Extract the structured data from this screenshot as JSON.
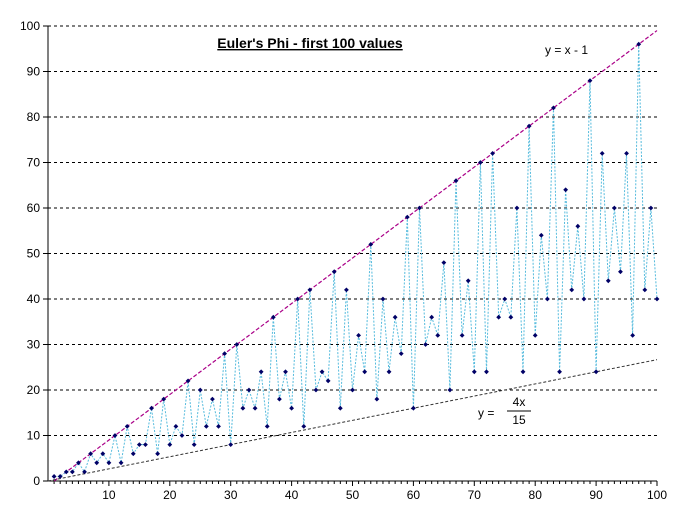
{
  "chart_data": {
    "type": "scatter",
    "title": "Euler's Phi - first 100 values",
    "xlabel": "",
    "ylabel": "",
    "xlim": [
      0,
      100
    ],
    "ylim": [
      0,
      100
    ],
    "x_ticks": [
      10,
      20,
      30,
      40,
      50,
      60,
      70,
      80,
      90,
      100
    ],
    "y_ticks": [
      0,
      10,
      20,
      30,
      40,
      50,
      60,
      70,
      80,
      90,
      100
    ],
    "grid": "horizontal dashed",
    "colors": {
      "points": "#000066",
      "connector": "#55bbdd",
      "upper_line": "#aa0088",
      "lower_line": "#333333",
      "gridline": "#000000"
    },
    "series": [
      {
        "x": [
          1,
          2,
          3,
          4,
          5,
          6,
          7,
          8,
          9,
          10,
          11,
          12,
          13,
          14,
          15,
          16,
          17,
          18,
          19,
          20,
          21,
          22,
          23,
          24,
          25,
          26,
          27,
          28,
          29,
          30,
          31,
          32,
          33,
          34,
          35,
          36,
          37,
          38,
          39,
          40,
          41,
          42,
          43,
          44,
          45,
          46,
          47,
          48,
          49,
          50,
          51,
          52,
          53,
          54,
          55,
          56,
          57,
          58,
          59,
          60,
          61,
          62,
          63,
          64,
          65,
          66,
          67,
          68,
          69,
          70,
          71,
          72,
          73,
          74,
          75,
          76,
          77,
          78,
          79,
          80,
          81,
          82,
          83,
          84,
          85,
          86,
          87,
          88,
          89,
          90,
          91,
          92,
          93,
          94,
          95,
          96,
          97,
          98,
          99,
          100
        ],
        "values": [
          1,
          1,
          2,
          2,
          4,
          2,
          6,
          4,
          6,
          4,
          10,
          4,
          12,
          6,
          8,
          8,
          16,
          6,
          18,
          8,
          12,
          10,
          22,
          8,
          20,
          12,
          18,
          12,
          28,
          8,
          30,
          16,
          20,
          16,
          24,
          12,
          36,
          18,
          24,
          16,
          40,
          12,
          42,
          20,
          24,
          22,
          46,
          16,
          42,
          20,
          32,
          24,
          52,
          18,
          40,
          24,
          36,
          28,
          58,
          16,
          60,
          30,
          36,
          32,
          48,
          20,
          66,
          32,
          44,
          24,
          70,
          24,
          72,
          36,
          40,
          36,
          60,
          24,
          78,
          32,
          54,
          40,
          82,
          24,
          64,
          42,
          56,
          40,
          88,
          24,
          72,
          44,
          60,
          46,
          72,
          32,
          96,
          42,
          60,
          40
        ]
      }
    ],
    "reference_lines": [
      {
        "label": "y = x - 1",
        "slope": 1,
        "intercept": -1
      },
      {
        "label_prefix": "y =",
        "numerator": "4x",
        "denominator": "15",
        "slope": 0.26666667,
        "intercept": 0
      }
    ]
  }
}
